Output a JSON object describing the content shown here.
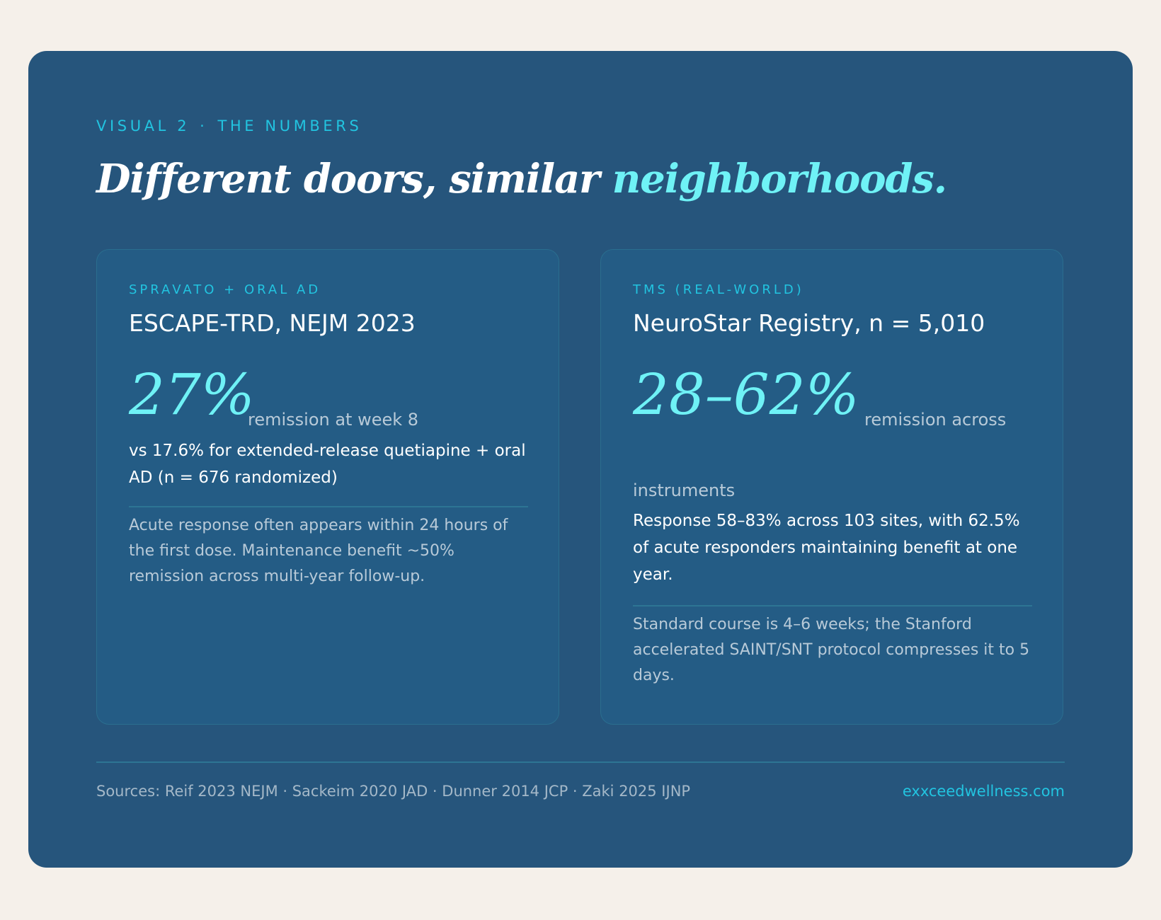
{
  "eyebrow": {
    "label": "VISUAL 2",
    "separator": "·",
    "section": "THE NUMBERS"
  },
  "headline": {
    "main": "Different doors, similar ",
    "accent": "neighborhoods."
  },
  "cards": [
    {
      "kicker": "SPRAVATO + ORAL AD",
      "title": "ESCAPE-TRD, NEJM 2023",
      "stat": "27%",
      "stat_caption": "remission at week 8",
      "detail": "vs 17.6% for extended-release quetiapine + oral AD (n = 676 randomized)",
      "note": "Acute response often appears within 24 hours of the first dose. Maintenance benefit ~50% remission across multi-year follow-up."
    },
    {
      "kicker": "TMS (REAL-WORLD)",
      "title": "NeuroStar Registry, n = 5,010",
      "stat": "28–62%",
      "stat_caption_line1": "remission across",
      "stat_caption_line2": "instruments",
      "detail": "Response 58–83% across 103 sites, with 62.5% of acute responders maintaining benefit at one year.",
      "note": "Standard course is 4–6 weeks; the Stanford accelerated SAINT/SNT protocol compresses it to 5 days."
    }
  ],
  "footer": {
    "sources": "Sources: Reif 2023 NEJM · Sackeim 2020 JAD · Dunner 2014 JCP · Zaki 2025 IJNP",
    "website": "exxceedwellness.com"
  },
  "colors": {
    "page_background": "#f5f0ea",
    "panel": "#26557c",
    "accent_cyan": "#22c4e0",
    "accent_aqua": "#6ff2f6"
  }
}
